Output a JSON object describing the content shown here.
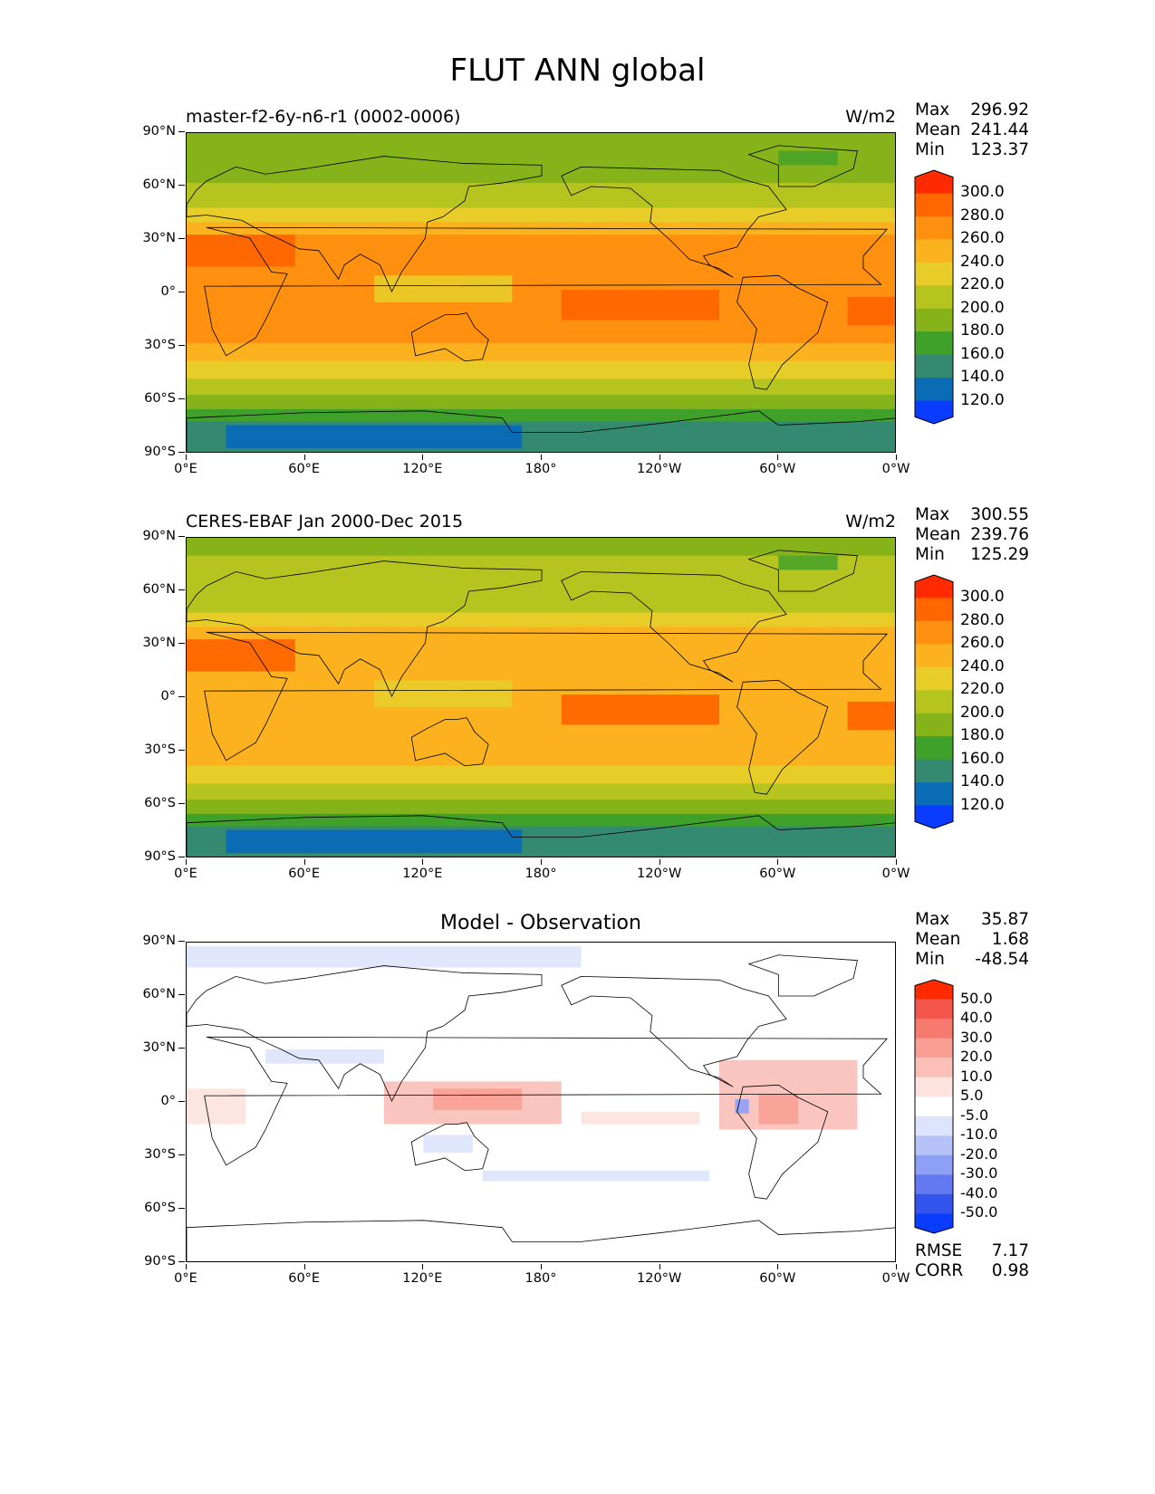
{
  "figure": {
    "title": "FLUT ANN global",
    "lat_ticks": [
      "90°N",
      "60°N",
      "30°N",
      "0°",
      "30°S",
      "60°S",
      "90°S"
    ],
    "lon_ticks": [
      "0°E",
      "60°E",
      "120°E",
      "180°",
      "120°W",
      "60°W",
      "0°W"
    ]
  },
  "panels": [
    {
      "title": "master-f2-6y-n6-r1 (0002-0006)",
      "units": "W/m2",
      "stats": [
        {
          "label": "Max",
          "value": "296.92"
        },
        {
          "label": "Mean",
          "value": "241.44"
        },
        {
          "label": "Min",
          "value": "123.37"
        }
      ],
      "colorbar": {
        "labels": [
          "300.0",
          "280.0",
          "260.0",
          "240.0",
          "220.0",
          "200.0",
          "180.0",
          "160.0",
          "140.0",
          "120.0"
        ],
        "colors": [
          "#ff2a00",
          "#ff6600",
          "#ff9010",
          "#fbb21e",
          "#e8cd28",
          "#b5c41e",
          "#86b31a",
          "#3fa02a",
          "#348a70",
          "#0a6cb4",
          "#0a3cff"
        ]
      }
    },
    {
      "title": "CERES-EBAF Jan 2000-Dec 2015",
      "units": "W/m2",
      "stats": [
        {
          "label": "Max",
          "value": "300.55"
        },
        {
          "label": "Mean",
          "value": "239.76"
        },
        {
          "label": "Min",
          "value": "125.29"
        }
      ],
      "colorbar": {
        "labels": [
          "300.0",
          "280.0",
          "260.0",
          "240.0",
          "220.0",
          "200.0",
          "180.0",
          "160.0",
          "140.0",
          "120.0"
        ],
        "colors": [
          "#ff2a00",
          "#ff6600",
          "#ff9010",
          "#fbb21e",
          "#e8cd28",
          "#b5c41e",
          "#86b31a",
          "#3fa02a",
          "#348a70",
          "#0a6cb4",
          "#0a3cff"
        ]
      }
    },
    {
      "title": "Model - Observation",
      "units": "",
      "stats": [
        {
          "label": "Max",
          "value": "35.87"
        },
        {
          "label": "Mean",
          "value": "1.68"
        },
        {
          "label": "Min",
          "value": "-48.54"
        }
      ],
      "extra_stats": [
        {
          "label": "RMSE",
          "value": "7.17"
        },
        {
          "label": "CORR",
          "value": "0.98"
        }
      ],
      "colorbar": {
        "labels": [
          "50.0",
          "40.0",
          "30.0",
          "20.0",
          "10.0",
          "5.0",
          "-5.0",
          "-10.0",
          "-20.0",
          "-30.0",
          "-40.0",
          "-50.0"
        ],
        "colors": [
          "#ff2a00",
          "#f4554a",
          "#f77a6e",
          "#f99e94",
          "#fbbfb8",
          "#fde2de",
          "#ffffff",
          "#dde3fb",
          "#b6c3f9",
          "#8da0f6",
          "#6279f2",
          "#3454ee",
          "#0a3cff"
        ]
      }
    }
  ]
}
